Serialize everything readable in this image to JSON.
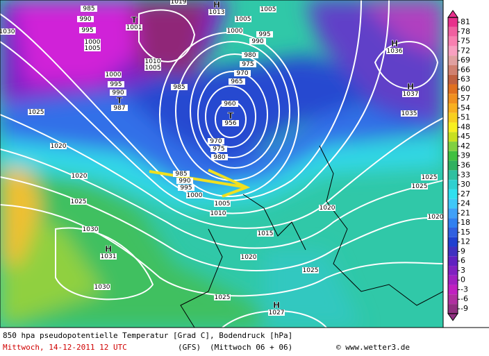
{
  "map": {
    "pressure_labels": [
      {
        "text": 985
      },
      {
        "text": 990
      },
      {
        "text": 995
      },
      {
        "text": 1000
      },
      {
        "text": 1005
      },
      {
        "symbol": "T",
        "text": 1001
      },
      {
        "text": 1019
      },
      {
        "symbol": "H",
        "text": 1013
      },
      {
        "text": 1005
      },
      {
        "text": 1005
      },
      {
        "text": 1000
      },
      {
        "text": 995
      },
      {
        "text": 990
      },
      {
        "text": 980
      },
      {
        "text": 975
      },
      {
        "text": 970
      },
      {
        "text": 965
      },
      {
        "text": 960
      },
      {
        "symbol": "T",
        "text": 956
      },
      {
        "text": 970
      },
      {
        "text": 975
      },
      {
        "text": 980
      },
      {
        "text": 985
      },
      {
        "text": 990
      },
      {
        "text": 995
      },
      {
        "text": 1000
      },
      {
        "text": 1005
      },
      {
        "text": 1010
      },
      {
        "text": 1015
      },
      {
        "text": 1020
      },
      {
        "text": 1025
      },
      {
        "text": 1025
      },
      {
        "symbol": "H",
        "text": 1027
      },
      {
        "text": 1030
      },
      {
        "symbol": "H",
        "text": 1031
      },
      {
        "text": 1030
      },
      {
        "text": 1025
      },
      {
        "text": 1020
      },
      {
        "text": 1020
      },
      {
        "text": 1025
      },
      {
        "text": 1000
      },
      {
        "text": 995
      },
      {
        "text": 990
      },
      {
        "symbol": "T",
        "text": 987
      },
      {
        "text": 985
      },
      {
        "text": 1010
      },
      {
        "text": 1005
      },
      {
        "symbol": "H",
        "text": 1036
      },
      {
        "symbol": "H",
        "text": 1037
      },
      {
        "text": 1035
      },
      {
        "text": 1025
      },
      {
        "text": 1025
      },
      {
        "text": 1020
      },
      {
        "text": 1020
      },
      {
        "text": 1030
      }
    ]
  },
  "colorbar": {
    "levels": [
      81,
      78,
      75,
      72,
      69,
      66,
      63,
      60,
      57,
      54,
      51,
      48,
      45,
      42,
      39,
      36,
      33,
      30,
      27,
      24,
      21,
      18,
      15,
      12,
      9,
      6,
      3,
      0,
      -3,
      -6,
      -9
    ],
    "colors": [
      "#e8308c",
      "#f060a0",
      "#f880b0",
      "#f8a0c0",
      "#e0a0a0",
      "#d08070",
      "#c06040",
      "#e07020",
      "#f09020",
      "#f8b020",
      "#f8d020",
      "#f8f020",
      "#c8e020",
      "#80d040",
      "#40c040",
      "#30b060",
      "#30c0a0",
      "#30d0d0",
      "#30e0f0",
      "#40c8f8",
      "#40a0f8",
      "#3080f0",
      "#3060e0",
      "#2040d0",
      "#4030c0",
      "#6020c0",
      "#8020c0",
      "#a020c0",
      "#c020c0",
      "#b030a0",
      "#903080"
    ]
  },
  "footer": {
    "line1": "850 hpa pseudopotentielle Temperatur [Grad C], Bodendruck [hPa]",
    "date": "Mittwoch, 14-12-2011  12 UTC",
    "model": "(GFS)",
    "run": "(Mittwoch 06 + 06)",
    "credit": "© www.wetter3.de"
  }
}
